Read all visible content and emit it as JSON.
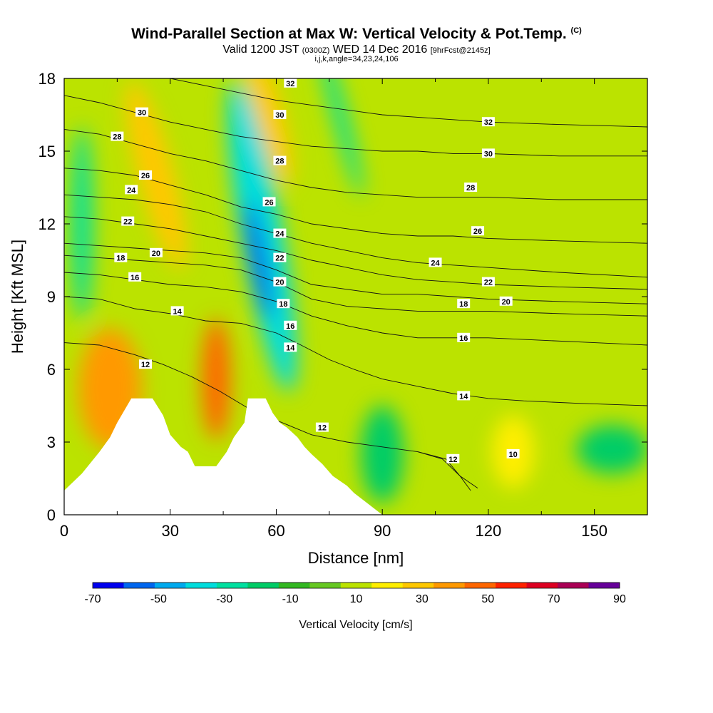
{
  "header": {
    "title": "Wind-Parallel Section at Max W: Vertical Velocity & Pot.Temp.",
    "title_mark": "(C)",
    "valid_main": "Valid 1200 JST",
    "valid_small": "(0300Z)",
    "valid_date": "WED 14 Dec 2016",
    "valid_fcst": "[9hrFcst@2145z]",
    "ijk": "i,j,k,angle=34,23,24,106"
  },
  "chart_data": {
    "type": "contour",
    "xlabel": "Distance [nm]",
    "ylabel": "Height [Kft MSL]",
    "xlim": [
      0,
      165
    ],
    "ylim": [
      0,
      18
    ],
    "x_ticks": [
      "0",
      "30",
      "60",
      "90",
      "120",
      "150"
    ],
    "y_ticks": [
      "0",
      "3",
      "6",
      "9",
      "12",
      "15",
      "18"
    ],
    "colorbar": {
      "label": "Vertical Velocity [cm/s]",
      "ticks": [
        "-70",
        "-50",
        "-30",
        "-10",
        "10",
        "30",
        "50",
        "70",
        "90"
      ],
      "bin_edges": [
        -70,
        -60,
        -50,
        -40,
        -30,
        -20,
        -10,
        0,
        10,
        20,
        30,
        40,
        50,
        60,
        70,
        80,
        90
      ],
      "colors": [
        "#0000ee",
        "#0066ee",
        "#00aaee",
        "#00dddd",
        "#00e0a0",
        "#00cc66",
        "#33b822",
        "#66c822",
        "#bbe300",
        "#ffee00",
        "#ffc800",
        "#ff9900",
        "#ff6600",
        "#ff2200",
        "#dd0022",
        "#aa0055",
        "#660099"
      ]
    },
    "terrain_kft": [
      [
        0,
        1
      ],
      [
        5,
        1.7
      ],
      [
        10,
        2.6
      ],
      [
        13,
        3.2
      ],
      [
        15,
        3.8
      ],
      [
        19,
        4.8
      ],
      [
        25,
        4.8
      ],
      [
        28,
        4.1
      ],
      [
        30,
        3.3
      ],
      [
        33,
        2.8
      ],
      [
        35,
        2.6
      ],
      [
        37,
        2
      ],
      [
        39,
        2
      ],
      [
        43,
        2
      ],
      [
        46,
        2.6
      ],
      [
        48,
        3.2
      ],
      [
        51,
        3.8
      ],
      [
        52,
        4.8
      ],
      [
        57,
        4.8
      ],
      [
        59,
        4.2
      ],
      [
        61,
        3.8
      ],
      [
        63,
        3.6
      ],
      [
        66,
        3.2
      ],
      [
        68,
        2.8
      ],
      [
        70,
        2.5
      ],
      [
        73,
        2.1
      ],
      [
        76,
        1.6
      ],
      [
        80,
        1.2
      ],
      [
        82,
        0.9
      ],
      [
        90,
        0
      ],
      [
        165,
        0
      ]
    ],
    "theta_contours": [
      {
        "label": "10",
        "points": [
          [
            100,
            2.6
          ],
          [
            107,
            2.3
          ],
          [
            112,
            1.6
          ],
          [
            117,
            1.1
          ]
        ],
        "label_at": [
          127,
          2.5
        ]
      },
      {
        "label": "12",
        "points": [
          [
            0,
            7.1
          ],
          [
            10,
            7.0
          ],
          [
            20,
            6.6
          ],
          [
            28,
            6.2
          ],
          [
            36,
            5.7
          ],
          [
            44,
            5.1
          ],
          [
            52,
            4.4
          ],
          [
            60,
            3.9
          ],
          [
            70,
            3.3
          ],
          [
            80,
            3.0
          ],
          [
            90,
            2.8
          ],
          [
            100,
            2.6
          ],
          [
            108,
            2.3
          ],
          [
            112,
            1.6
          ],
          [
            115,
            1.0
          ]
        ],
        "label_at": [
          110,
          2.3
        ]
      },
      {
        "label": "14",
        "points": [
          [
            0,
            9.0
          ],
          [
            10,
            8.9
          ],
          [
            20,
            8.5
          ],
          [
            30,
            8.3
          ],
          [
            40,
            8.0
          ],
          [
            50,
            7.9
          ],
          [
            60,
            7.5
          ],
          [
            67,
            7.0
          ],
          [
            75,
            6.4
          ],
          [
            82,
            6.0
          ],
          [
            90,
            5.6
          ],
          [
            100,
            5.3
          ],
          [
            110,
            5.0
          ],
          [
            120,
            4.8
          ],
          [
            130,
            4.7
          ],
          [
            145,
            4.6
          ],
          [
            165,
            4.5
          ]
        ],
        "label_at": [
          113,
          4.9
        ]
      },
      {
        "label": "16",
        "points": [
          [
            0,
            10.0
          ],
          [
            10,
            9.9
          ],
          [
            20,
            9.7
          ],
          [
            30,
            9.5
          ],
          [
            40,
            9.4
          ],
          [
            50,
            9.2
          ],
          [
            60,
            8.8
          ],
          [
            70,
            8.2
          ],
          [
            80,
            7.8
          ],
          [
            90,
            7.5
          ],
          [
            100,
            7.3
          ],
          [
            110,
            7.3
          ],
          [
            120,
            7.3
          ],
          [
            135,
            7.2
          ],
          [
            150,
            7.1
          ],
          [
            165,
            7.0
          ]
        ],
        "label_at": [
          113,
          7.3
        ]
      },
      {
        "label": "18",
        "points": [
          [
            0,
            10.7
          ],
          [
            10,
            10.6
          ],
          [
            20,
            10.5
          ],
          [
            30,
            10.4
          ],
          [
            40,
            10.3
          ],
          [
            50,
            10.1
          ],
          [
            60,
            9.6
          ],
          [
            70,
            8.9
          ],
          [
            80,
            8.6
          ],
          [
            90,
            8.5
          ],
          [
            100,
            8.4
          ],
          [
            110,
            8.4
          ],
          [
            120,
            8.4
          ],
          [
            140,
            8.3
          ],
          [
            165,
            8.2
          ]
        ],
        "label_at": [
          113,
          8.7
        ]
      },
      {
        "label": "20",
        "points": [
          [
            0,
            11.2
          ],
          [
            10,
            11.1
          ],
          [
            20,
            11.0
          ],
          [
            30,
            10.9
          ],
          [
            40,
            10.8
          ],
          [
            50,
            10.6
          ],
          [
            60,
            10.1
          ],
          [
            70,
            9.5
          ],
          [
            80,
            9.3
          ],
          [
            90,
            9.1
          ],
          [
            100,
            9.1
          ],
          [
            110,
            9.0
          ],
          [
            120,
            8.9
          ],
          [
            140,
            8.8
          ],
          [
            165,
            8.7
          ]
        ],
        "label_at": [
          125,
          8.8
        ]
      },
      {
        "label": "22",
        "points": [
          [
            0,
            12.3
          ],
          [
            10,
            12.2
          ],
          [
            20,
            12.0
          ],
          [
            30,
            11.8
          ],
          [
            40,
            11.5
          ],
          [
            50,
            11.2
          ],
          [
            60,
            10.9
          ],
          [
            70,
            10.5
          ],
          [
            80,
            10.2
          ],
          [
            90,
            9.9
          ],
          [
            100,
            9.7
          ],
          [
            110,
            9.6
          ],
          [
            120,
            9.5
          ],
          [
            140,
            9.4
          ],
          [
            165,
            9.3
          ]
        ],
        "label_at": [
          120,
          9.6
        ]
      },
      {
        "label": "24",
        "points": [
          [
            0,
            13.2
          ],
          [
            10,
            13.1
          ],
          [
            20,
            13.0
          ],
          [
            30,
            12.8
          ],
          [
            40,
            12.5
          ],
          [
            50,
            12.0
          ],
          [
            60,
            11.6
          ],
          [
            70,
            11.2
          ],
          [
            80,
            10.9
          ],
          [
            90,
            10.6
          ],
          [
            100,
            10.4
          ],
          [
            110,
            10.3
          ],
          [
            120,
            10.2
          ],
          [
            140,
            10.0
          ],
          [
            165,
            9.8
          ]
        ],
        "label_at": [
          105,
          10.4
        ]
      },
      {
        "label": "26",
        "points": [
          [
            0,
            14.3
          ],
          [
            10,
            14.2
          ],
          [
            20,
            14.0
          ],
          [
            30,
            13.6
          ],
          [
            40,
            13.2
          ],
          [
            50,
            12.7
          ],
          [
            60,
            12.4
          ],
          [
            70,
            12.0
          ],
          [
            80,
            11.8
          ],
          [
            90,
            11.6
          ],
          [
            100,
            11.5
          ],
          [
            110,
            11.5
          ],
          [
            120,
            11.4
          ],
          [
            140,
            11.3
          ],
          [
            165,
            11.2
          ]
        ],
        "label_at": [
          117,
          11.7
        ]
      },
      {
        "label": "28",
        "points": [
          [
            0,
            15.9
          ],
          [
            10,
            15.7
          ],
          [
            20,
            15.3
          ],
          [
            30,
            14.9
          ],
          [
            40,
            14.6
          ],
          [
            50,
            14.2
          ],
          [
            60,
            13.8
          ],
          [
            70,
            13.5
          ],
          [
            80,
            13.3
          ],
          [
            90,
            13.2
          ],
          [
            100,
            13.1
          ],
          [
            110,
            13.1
          ],
          [
            120,
            13.1
          ],
          [
            140,
            13.0
          ],
          [
            165,
            13.0
          ]
        ],
        "label_at": [
          115,
          13.5
        ]
      },
      {
        "label": "30",
        "points": [
          [
            0,
            17.3
          ],
          [
            10,
            17.0
          ],
          [
            20,
            16.6
          ],
          [
            30,
            16.2
          ],
          [
            40,
            15.9
          ],
          [
            50,
            15.6
          ],
          [
            60,
            15.4
          ],
          [
            70,
            15.2
          ],
          [
            80,
            15.1
          ],
          [
            90,
            15.0
          ],
          [
            100,
            15.0
          ],
          [
            110,
            14.9
          ],
          [
            120,
            14.9
          ],
          [
            140,
            14.8
          ],
          [
            165,
            14.8
          ]
        ],
        "label_at": [
          120,
          14.9
        ]
      },
      {
        "label": "32",
        "points": [
          [
            30,
            18.0
          ],
          [
            40,
            17.7
          ],
          [
            50,
            17.4
          ],
          [
            60,
            17.1
          ],
          [
            70,
            16.9
          ],
          [
            80,
            16.7
          ],
          [
            90,
            16.5
          ],
          [
            100,
            16.4
          ],
          [
            110,
            16.3
          ],
          [
            120,
            16.2
          ],
          [
            140,
            16.1
          ],
          [
            165,
            16.0
          ]
        ],
        "label_at": [
          120,
          16.2
        ]
      }
    ],
    "theta_labels": [
      {
        "label": "30",
        "x": 22,
        "y": 16.6
      },
      {
        "label": "28",
        "x": 15,
        "y": 15.6
      },
      {
        "label": "26",
        "x": 23,
        "y": 14.0
      },
      {
        "label": "24",
        "x": 19,
        "y": 13.4
      },
      {
        "label": "22",
        "x": 18,
        "y": 12.1
      },
      {
        "label": "20",
        "x": 26,
        "y": 10.8
      },
      {
        "label": "18",
        "x": 16,
        "y": 10.6
      },
      {
        "label": "16",
        "x": 20,
        "y": 9.8
      },
      {
        "label": "14",
        "x": 32,
        "y": 8.4
      },
      {
        "label": "12",
        "x": 23,
        "y": 6.2
      },
      {
        "label": "32",
        "x": 64,
        "y": 17.8
      },
      {
        "label": "30",
        "x": 61,
        "y": 16.5
      },
      {
        "label": "28",
        "x": 61,
        "y": 14.6
      },
      {
        "label": "26",
        "x": 58,
        "y": 12.9
      },
      {
        "label": "24",
        "x": 61,
        "y": 11.6
      },
      {
        "label": "22",
        "x": 61,
        "y": 10.6
      },
      {
        "label": "20",
        "x": 61,
        "y": 9.6
      },
      {
        "label": "18",
        "x": 62,
        "y": 8.7
      },
      {
        "label": "16",
        "x": 64,
        "y": 7.8
      },
      {
        "label": "14",
        "x": 64,
        "y": 6.9
      },
      {
        "label": "12",
        "x": 73,
        "y": 3.6
      },
      {
        "label": "32",
        "x": 120,
        "y": 16.2
      },
      {
        "label": "30",
        "x": 120,
        "y": 14.9
      },
      {
        "label": "28",
        "x": 115,
        "y": 13.5
      },
      {
        "label": "26",
        "x": 117,
        "y": 11.7
      },
      {
        "label": "24",
        "x": 105,
        "y": 10.4
      },
      {
        "label": "22",
        "x": 120,
        "y": 9.6
      },
      {
        "label": "20",
        "x": 125,
        "y": 8.8
      },
      {
        "label": "18",
        "x": 113,
        "y": 8.7
      },
      {
        "label": "16",
        "x": 113,
        "y": 7.3
      },
      {
        "label": "14",
        "x": 113,
        "y": 4.9
      },
      {
        "label": "12",
        "x": 110,
        "y": 2.3
      },
      {
        "label": "10",
        "x": 127,
        "y": 2.5
      }
    ],
    "w_field_blobs": [
      {
        "w": 15,
        "x": [
          0,
          165
        ],
        "y": [
          0,
          18
        ],
        "kind": "background"
      },
      {
        "w": -35,
        "cx": 56,
        "cy": 11.5,
        "rx": 6,
        "ry": 6.5,
        "angle": -10
      },
      {
        "w": -65,
        "cx": 55,
        "cy": 10.5,
        "rx": 2,
        "ry": 2.5,
        "angle": -10
      },
      {
        "w": 45,
        "cx": 13,
        "cy": 5.2,
        "rx": 9,
        "ry": 2.5,
        "angle": 0
      },
      {
        "w": 55,
        "cx": 43,
        "cy": 5.6,
        "rx": 4,
        "ry": 2.5,
        "angle": 0
      },
      {
        "w": 35,
        "cx": 58,
        "cy": 16.5,
        "rx": 4,
        "ry": 3,
        "angle": -15
      },
      {
        "w": 35,
        "cx": 26,
        "cy": 14.0,
        "rx": 5,
        "ry": 4,
        "angle": -15
      },
      {
        "w": -25,
        "cx": 78,
        "cy": 16.5,
        "rx": 2,
        "ry": 3.5,
        "angle": -15
      },
      {
        "w": -25,
        "cx": 5,
        "cy": 12.0,
        "rx": 3,
        "ry": 4,
        "angle": 0
      },
      {
        "w": -15,
        "cx": 90,
        "cy": 2.5,
        "rx": 6,
        "ry": 2,
        "angle": 0
      },
      {
        "w": 20,
        "cx": 127,
        "cy": 2.6,
        "rx": 6,
        "ry": 1.5,
        "angle": 0
      },
      {
        "w": -15,
        "cx": 155,
        "cy": 2.7,
        "rx": 10,
        "ry": 1,
        "angle": 0
      }
    ]
  }
}
